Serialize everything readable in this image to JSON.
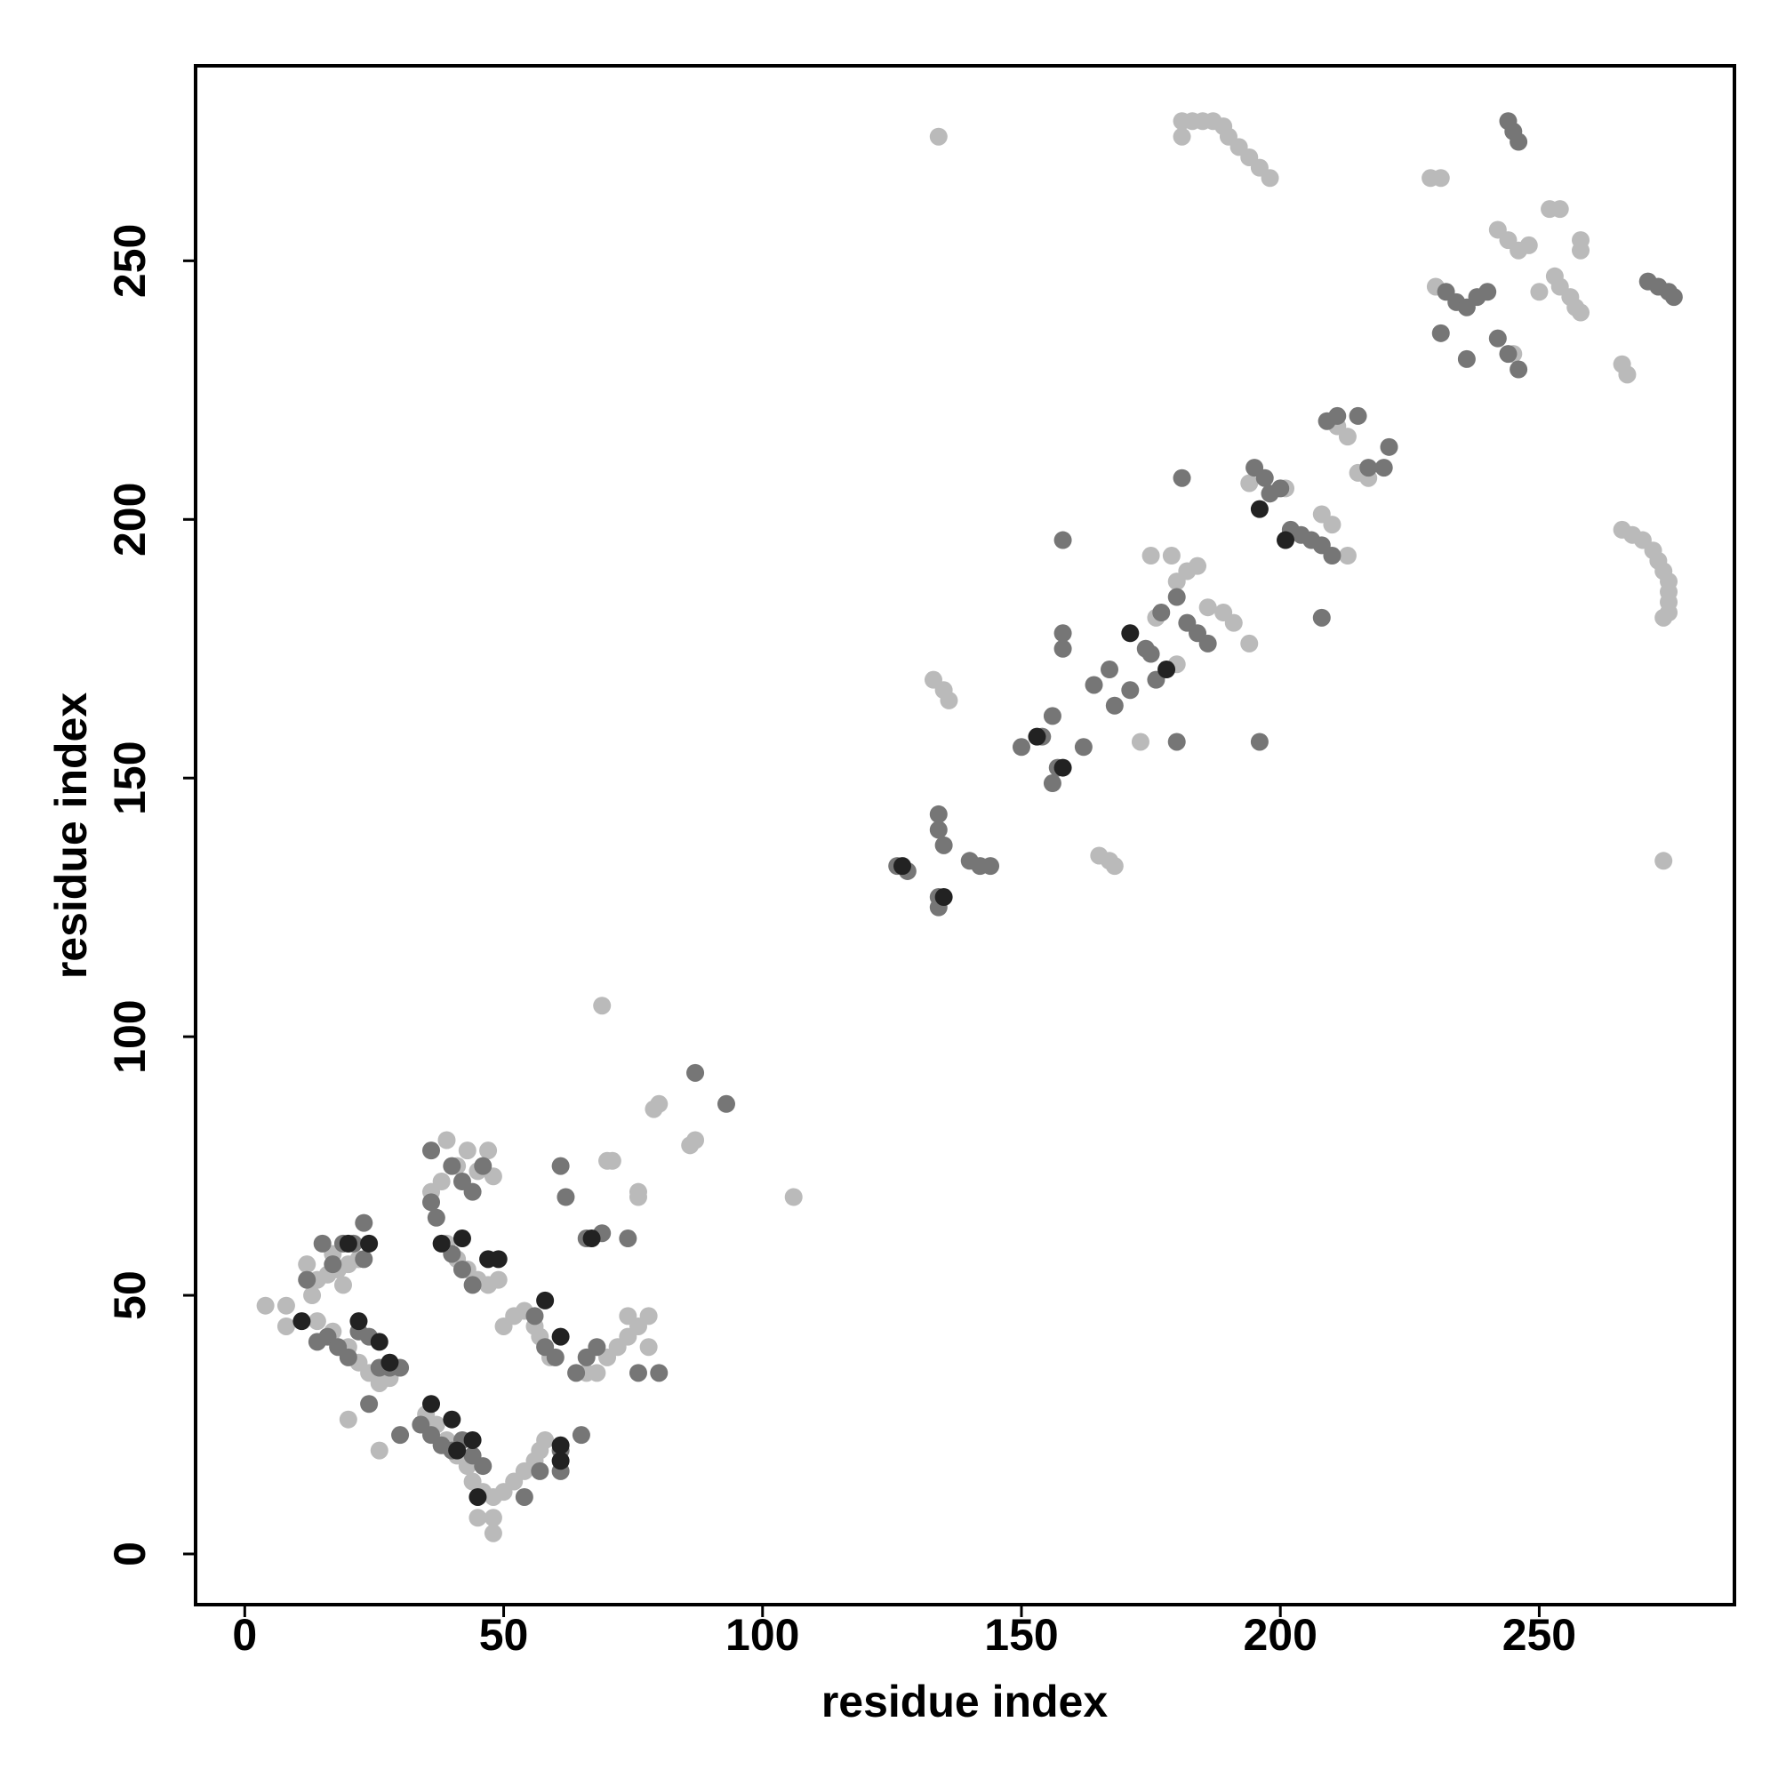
{
  "chart_data": {
    "type": "scatter",
    "xlabel": "residue index",
    "ylabel": "residue index",
    "xlim": [
      -9.5,
      287.7
    ],
    "ylim": [
      -9.8,
      287.7
    ],
    "xticks": [
      0,
      50,
      100,
      150,
      200,
      250
    ],
    "yticks": [
      0,
      50,
      100,
      150,
      200,
      250
    ],
    "series": [
      {
        "color": "#bababa",
        "x": [
          134,
          181,
          181,
          183,
          185,
          187,
          189,
          190,
          192,
          194,
          196,
          198,
          229,
          231,
          242,
          244,
          246,
          248,
          252,
          254,
          258,
          258,
          250,
          253,
          254,
          256,
          257,
          258,
          230,
          266,
          267,
          245,
          266,
          268,
          270,
          272,
          273,
          274,
          275,
          275,
          275,
          275,
          274,
          274,
          211,
          213,
          215,
          217,
          210,
          208,
          213,
          194,
          198,
          201,
          179,
          182,
          180,
          184,
          175,
          176,
          186,
          189,
          191,
          194,
          173,
          180,
          133,
          135,
          136,
          165,
          167,
          168,
          106,
          69,
          79,
          80,
          86,
          87,
          70,
          71,
          76,
          76,
          4,
          8,
          8,
          12,
          13,
          14,
          16,
          18,
          20,
          22,
          17,
          19,
          14,
          17,
          20,
          22,
          24,
          26,
          28,
          20,
          26,
          35,
          37,
          39,
          41,
          43,
          44,
          46,
          48,
          50,
          52,
          54,
          56,
          57,
          58,
          45,
          48,
          48,
          36,
          38,
          39,
          41,
          43,
          45,
          47,
          48,
          39,
          41,
          43,
          45,
          47,
          49,
          50,
          52,
          54,
          56,
          57,
          59,
          66,
          68,
          70,
          72,
          74,
          76,
          78,
          74,
          78
        ],
        "y": [
          274,
          274,
          277,
          277,
          277,
          277,
          276,
          274,
          272,
          270,
          268,
          266,
          266,
          266,
          256,
          254,
          252,
          253,
          260,
          260,
          254,
          252,
          244,
          247,
          245,
          243,
          241,
          240,
          245,
          230,
          228,
          232,
          198,
          197,
          196,
          194,
          192,
          190,
          188,
          186,
          184,
          182,
          181,
          134,
          218,
          216,
          209,
          208,
          199,
          201,
          193,
          207,
          205,
          206,
          193,
          190,
          188,
          191,
          193,
          181,
          183,
          182,
          180,
          176,
          157,
          172,
          169,
          167,
          165,
          135,
          134,
          133,
          69,
          106,
          86,
          87,
          79,
          80,
          76,
          76,
          69,
          70,
          48,
          48,
          44,
          56,
          50,
          53,
          54,
          55,
          56,
          57,
          58,
          52,
          45,
          43,
          40,
          37,
          35,
          33,
          34,
          26,
          20,
          27,
          25,
          22,
          19,
          17,
          14,
          12,
          11,
          12,
          14,
          16,
          18,
          20,
          22,
          7,
          7,
          4,
          70,
          72,
          80,
          75,
          78,
          74,
          78,
          73,
          60,
          57,
          55,
          53,
          52,
          53,
          44,
          46,
          47,
          44,
          42,
          38,
          35,
          35,
          38,
          40,
          42,
          44,
          46,
          46,
          40
        ]
      },
      {
        "color": "#767676",
        "x": [
          244,
          245,
          246,
          232,
          234,
          236,
          238,
          240,
          231,
          236,
          242,
          244,
          246,
          271,
          273,
          275,
          276,
          195,
          197,
          198,
          200,
          202,
          204,
          206,
          208,
          210,
          208,
          181,
          209,
          211,
          215,
          221,
          220,
          217,
          158,
          196,
          158,
          158,
          156,
          162,
          164,
          168,
          167,
          171,
          174,
          175,
          176,
          177,
          180,
          182,
          184,
          186,
          180,
          150,
          154,
          156,
          157,
          126,
          128,
          134,
          134,
          135,
          134,
          134,
          140,
          142,
          144,
          93,
          87,
          61,
          62,
          74,
          69,
          66,
          12,
          15,
          17,
          19,
          21,
          23,
          23,
          14,
          16,
          18,
          20,
          22,
          24,
          26,
          28,
          30,
          24,
          30,
          34,
          36,
          38,
          40,
          42,
          44,
          46,
          54,
          57,
          61,
          61,
          65,
          36,
          36,
          37,
          40,
          42,
          44,
          46,
          40,
          42,
          44,
          56,
          58,
          60,
          66,
          68,
          64,
          76,
          80
        ],
        "y": [
          277,
          275,
          273,
          244,
          242,
          241,
          243,
          244,
          236,
          231,
          235,
          232,
          229,
          246,
          245,
          244,
          243,
          210,
          208,
          205,
          206,
          198,
          197,
          196,
          195,
          193,
          181,
          208,
          219,
          220,
          220,
          214,
          210,
          210,
          196,
          157,
          178,
          175,
          162,
          156,
          168,
          164,
          171,
          167,
          175,
          174,
          169,
          182,
          185,
          180,
          178,
          176,
          157,
          156,
          158,
          149,
          152,
          133,
          132,
          143,
          140,
          137,
          127,
          125,
          134,
          133,
          133,
          87,
          93,
          75,
          69,
          61,
          62,
          61,
          53,
          60,
          56,
          60,
          60,
          57,
          64,
          41,
          42,
          40,
          38,
          43,
          42,
          36,
          36,
          36,
          29,
          23,
          25,
          23,
          21,
          20,
          22,
          19,
          17,
          11,
          16,
          16,
          20,
          23,
          78,
          68,
          65,
          75,
          72,
          70,
          75,
          58,
          55,
          52,
          46,
          40,
          38,
          38,
          40,
          35,
          35,
          35
        ]
      },
      {
        "color": "#222222",
        "x": [
          171,
          178,
          201,
          196,
          127,
          135,
          158,
          153,
          11,
          24,
          20,
          26,
          28,
          22,
          36,
          40,
          44,
          45,
          38,
          42,
          49,
          47,
          58,
          61,
          61,
          61,
          67,
          41
        ],
        "y": [
          178,
          171,
          196,
          202,
          133,
          127,
          152,
          158,
          45,
          60,
          60,
          41,
          37,
          45,
          29,
          26,
          22,
          11,
          60,
          61,
          57,
          57,
          49,
          42,
          18,
          21,
          61,
          20
        ]
      }
    ]
  }
}
